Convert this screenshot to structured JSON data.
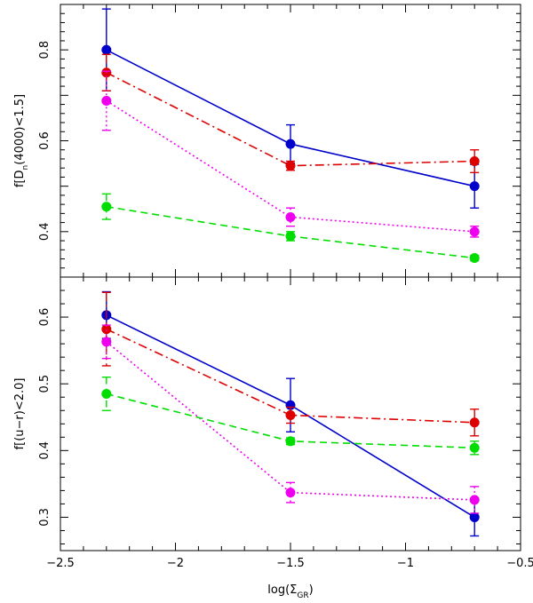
{
  "chart_data": [
    {
      "type": "line",
      "ylabel_parts": {
        "pre": "f[D",
        "sub": "n",
        "post": "(4000)<1.5]"
      },
      "ylim": [
        0.3,
        0.9
      ],
      "yticks": [
        0.4,
        0.6,
        0.8
      ],
      "ytick_labels": [
        "0.4",
        "0.6",
        "0.8"
      ],
      "series": [
        {
          "name": "blue-solid",
          "color": "#0000cc",
          "dash": "",
          "x": [
            -2.3,
            -1.5,
            -0.7
          ],
          "y": [
            0.8,
            0.593,
            0.5
          ],
          "err": [
            0.09,
            0.042,
            0.048
          ]
        },
        {
          "name": "red-dashdot",
          "color": "#dd0000",
          "dash": "10,4,2,4",
          "x": [
            -2.3,
            -1.5,
            -0.7
          ],
          "y": [
            0.75,
            0.545,
            0.555
          ],
          "err": [
            0.04,
            0.01,
            0.025
          ]
        },
        {
          "name": "magenta-dotted",
          "color": "#ee00ee",
          "dash": "2,3",
          "x": [
            -2.3,
            -1.5,
            -0.7
          ],
          "y": [
            0.688,
            0.432,
            0.4
          ],
          "err": [
            0.065,
            0.02,
            0.012
          ]
        },
        {
          "name": "green-dashed",
          "color": "#00dd00",
          "dash": "8,5",
          "x": [
            -2.3,
            -1.5,
            -0.7
          ],
          "y": [
            0.455,
            0.39,
            0.342
          ],
          "err": [
            0.028,
            0.01,
            0.006
          ]
        }
      ]
    },
    {
      "type": "line",
      "ylabel_parts": {
        "pre": "f[(u−r)<2.0]",
        "sub": "",
        "post": ""
      },
      "ylim": [
        0.25,
        0.66
      ],
      "yticks": [
        0.3,
        0.4,
        0.5,
        0.6
      ],
      "ytick_labels": [
        "0.3",
        "0.4",
        "0.5",
        "0.6"
      ],
      "xlabel_parts": {
        "pre": "log(Σ",
        "sub": "GR",
        "post": ")"
      },
      "xlim": [
        -2.5,
        -0.5
      ],
      "xticks": [
        -2.5,
        -2,
        -1.5,
        -1,
        -0.5
      ],
      "xtick_labels": [
        "−2.5",
        "−2",
        "−1.5",
        "−1",
        "−0.5"
      ],
      "series": [
        {
          "name": "blue-solid",
          "color": "#0000cc",
          "dash": "",
          "x": [
            -2.3,
            -1.5,
            -0.7
          ],
          "y": [
            0.603,
            0.468,
            0.3
          ],
          "err": [
            0.035,
            0.04,
            0.028
          ]
        },
        {
          "name": "red-dashdot",
          "color": "#dd0000",
          "dash": "10,4,2,4",
          "x": [
            -2.3,
            -1.5,
            -0.7
          ],
          "y": [
            0.582,
            0.453,
            0.442
          ],
          "err": [
            0.055,
            0.012,
            0.02
          ]
        },
        {
          "name": "magenta-dotted",
          "color": "#ee00ee",
          "dash": "2,3",
          "x": [
            -2.3,
            -1.5,
            -0.7
          ],
          "y": [
            0.563,
            0.337,
            0.326
          ],
          "err": [
            0.025,
            0.015,
            0.02
          ]
        },
        {
          "name": "green-dashed",
          "color": "#00dd00",
          "dash": "8,5",
          "x": [
            -2.3,
            -1.5,
            -0.7
          ],
          "y": [
            0.485,
            0.414,
            0.404
          ],
          "err": [
            0.025,
            0.005,
            0.01
          ]
        }
      ]
    }
  ]
}
